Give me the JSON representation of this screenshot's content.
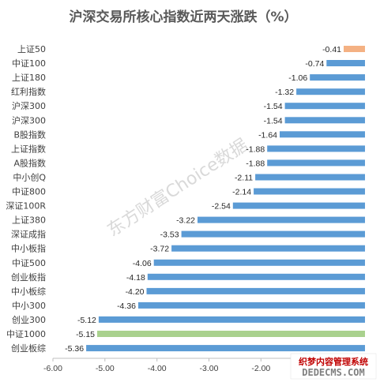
{
  "chart_data": {
    "type": "bar",
    "orientation": "horizontal",
    "title": "沪深交易所核心指数近两天涨跌（%）",
    "categories": [
      "上证50",
      "中证100",
      "上证180",
      "红利指数",
      "沪深300",
      "沪深300",
      "B股指数",
      "上证指数",
      "A股指数",
      "中小创Q",
      "中证800",
      "深证100R",
      "上证380",
      "深证成指",
      "中小板指",
      "中证500",
      "创业板指",
      "中小板综",
      "中小300",
      "创业300",
      "中证1000",
      "创业板综"
    ],
    "values": [
      -0.41,
      -0.74,
      -1.06,
      -1.32,
      -1.54,
      -1.54,
      -1.64,
      -1.88,
      -1.88,
      -2.11,
      -2.14,
      -2.54,
      -3.22,
      -3.53,
      -3.72,
      -4.06,
      -4.18,
      -4.2,
      -4.36,
      -5.12,
      -5.15,
      -5.36
    ],
    "value_labels": [
      "-0.41",
      "-0.74",
      "-1.06",
      "-1.32",
      "-1.54",
      "-1.54",
      "-1.64",
      "-1.88",
      "-1.88",
      "-2.11",
      "-2.14",
      "-2.54",
      "-3.22",
      "-3.53",
      "-3.72",
      "-4.06",
      "-4.18",
      "-4.20",
      "-4.36",
      "-5.12",
      "-5.15",
      "-5.36"
    ],
    "bar_colors": [
      "#f4b183",
      "#5b9bd5",
      "#5b9bd5",
      "#5b9bd5",
      "#5b9bd5",
      "#5b9bd5",
      "#5b9bd5",
      "#5b9bd5",
      "#5b9bd5",
      "#5b9bd5",
      "#5b9bd5",
      "#5b9bd5",
      "#5b9bd5",
      "#5b9bd5",
      "#5b9bd5",
      "#5b9bd5",
      "#5b9bd5",
      "#5b9bd5",
      "#5b9bd5",
      "#5b9bd5",
      "#a9d18e",
      "#5b9bd5"
    ],
    "xlim": [
      -6.0,
      0.0
    ],
    "x_ticks": [
      "-6.00",
      "-5.00",
      "-4.00",
      "-3.00",
      "-2.00"
    ],
    "x_tick_values": [
      -6,
      -5,
      -4,
      -3,
      -2
    ],
    "grid": false,
    "legend": "none"
  },
  "watermark_text": "东方财富Choice数据",
  "stamp": {
    "line1": "织梦内容管理系统",
    "line2": "DEDECMS.COM"
  }
}
